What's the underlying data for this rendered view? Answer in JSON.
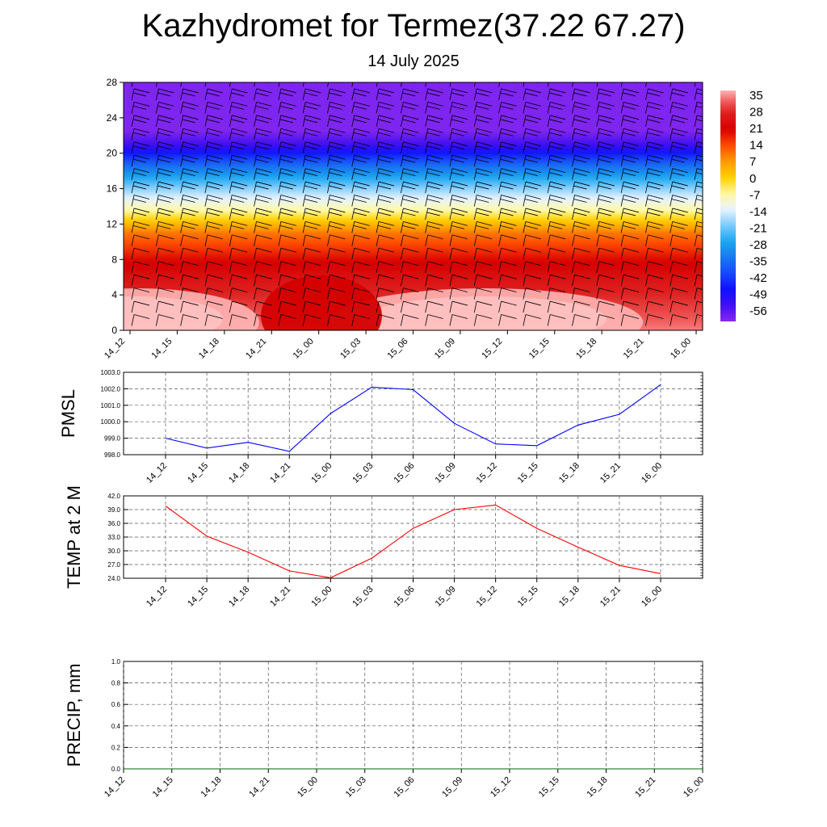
{
  "title": "Kazhydromet for Termez(37.22 67.27)",
  "subtitle": "14 July 2025",
  "chart_data": [
    {
      "type": "heatmap",
      "name": "temperature-wind-cross-section",
      "x": [
        "14_12",
        "14_15",
        "14_18",
        "14_21",
        "15_00",
        "15_03",
        "15_06",
        "15_09",
        "15_12",
        "15_15",
        "15_18",
        "15_21",
        "16_00"
      ],
      "ylim": [
        0,
        28
      ],
      "yticks": [
        "0",
        "4",
        "8",
        "12",
        "16",
        "20",
        "24",
        "28"
      ],
      "grid": false,
      "temperature_profile": [
        {
          "height": 0,
          "value": 35
        },
        {
          "height": 5,
          "value": 27
        },
        {
          "height": 8,
          "value": 20
        },
        {
          "height": 11,
          "value": 10
        },
        {
          "height": 13.5,
          "value": -7
        },
        {
          "height": 16,
          "value": -20
        },
        {
          "height": 18.5,
          "value": -36
        },
        {
          "height": 21,
          "value": -56
        },
        {
          "height": 22.5,
          "value": -62
        },
        {
          "height": 28,
          "value": -62
        }
      ],
      "colorbar": {
        "labels": [
          "35",
          "28",
          "21",
          "14",
          "7",
          "0",
          "-7",
          "-14",
          "-21",
          "-28",
          "-35",
          "-42",
          "-49",
          "-56"
        ],
        "stops": [
          {
            "value": 38,
            "color": "#ffb4b4"
          },
          {
            "value": 33,
            "color": "#f05858"
          },
          {
            "value": 28,
            "color": "#dd1e1e"
          },
          {
            "value": 21,
            "color": "#d60000"
          },
          {
            "value": 14,
            "color": "#ff4a00"
          },
          {
            "value": 7,
            "color": "#ff9a00"
          },
          {
            "value": 0,
            "color": "#ffd000"
          },
          {
            "value": -7,
            "color": "#fff8a0"
          },
          {
            "value": -14,
            "color": "#e8f4ff"
          },
          {
            "value": -21,
            "color": "#7ccaff"
          },
          {
            "value": -28,
            "color": "#1aa8f0"
          },
          {
            "value": -35,
            "color": "#1878f0"
          },
          {
            "value": -42,
            "color": "#1848ff"
          },
          {
            "value": -49,
            "color": "#1010ff"
          },
          {
            "value": -56,
            "color": "#4010f0"
          },
          {
            "value": -63,
            "color": "#8a28f0"
          }
        ]
      }
    },
    {
      "type": "line",
      "name": "pmsl",
      "ylabel": "PMSL",
      "x": [
        "14_12",
        "14_15",
        "14_18",
        "14_21",
        "15_00",
        "15_03",
        "15_06",
        "15_09",
        "15_12",
        "15_15",
        "15_18",
        "15_21",
        "16_00"
      ],
      "values": [
        999.0,
        998.4,
        998.75,
        998.2,
        1000.5,
        1002.1,
        1001.95,
        999.9,
        998.65,
        998.55,
        999.8,
        1000.45,
        1002.25
      ],
      "ylim": [
        998.0,
        1003.0
      ],
      "yticks": [
        "998.0",
        "999.0",
        "1000.0",
        "1001.0",
        "1002.0",
        "1003.0"
      ],
      "color": "#0000ff",
      "grid": true
    },
    {
      "type": "line",
      "name": "temp-2m",
      "ylabel": "TEMP at 2 M",
      "x": [
        "14_12",
        "14_15",
        "14_18",
        "14_21",
        "15_00",
        "15_03",
        "15_06",
        "15_09",
        "15_12",
        "15_15",
        "15_18",
        "15_21",
        "16_00"
      ],
      "values": [
        39.8,
        33.2,
        29.7,
        25.6,
        24.1,
        28.4,
        34.9,
        39.0,
        40.0,
        34.9,
        30.8,
        26.8,
        25.0
      ],
      "ylim": [
        24.0,
        42.0
      ],
      "yticks": [
        "24.0",
        "27.0",
        "30.0",
        "33.0",
        "36.0",
        "39.0",
        "42.0"
      ],
      "color": "#ff0000",
      "grid": true
    },
    {
      "type": "line",
      "name": "precip",
      "ylabel": "PRECIP, mm",
      "x": [
        "14_12",
        "14_15",
        "14_18",
        "14_21",
        "15_00",
        "15_03",
        "15_06",
        "15_09",
        "15_12",
        "15_15",
        "15_18",
        "15_21",
        "16_00"
      ],
      "values": [
        0,
        0,
        0,
        0,
        0,
        0,
        0,
        0,
        0,
        0,
        0,
        0,
        0
      ],
      "ylim": [
        0.0,
        1.0
      ],
      "yticks": [
        "0.0",
        "0.2",
        "0.4",
        "0.6",
        "0.8",
        "1.0"
      ],
      "color": "#006400",
      "grid": true
    }
  ]
}
